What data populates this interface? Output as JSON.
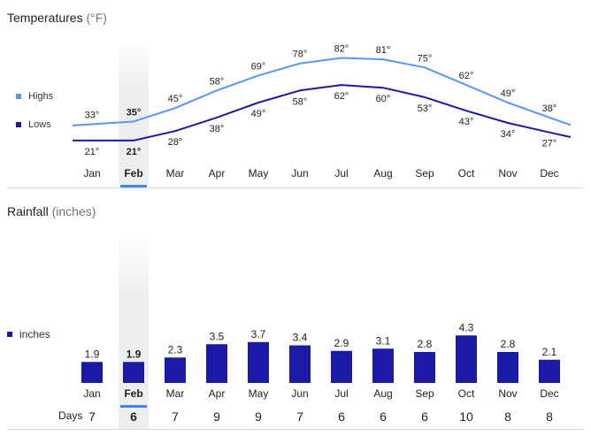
{
  "temperatures": {
    "title": "Temperatures",
    "unit": "(°F)",
    "legend": {
      "highs": "Highs",
      "lows": "Lows"
    }
  },
  "rainfall": {
    "title": "Rainfall",
    "unit": "(inches)",
    "legend": "inches",
    "days_label": "Days"
  },
  "selected_month": "Feb",
  "colors": {
    "highs": "#5a95f5",
    "lows": "#1a1aa6",
    "bars": "#1a1aa6",
    "accent": "#4285f4"
  },
  "chart_data": [
    {
      "type": "line",
      "title": "Temperatures",
      "ylabel": "(°F)",
      "categories": [
        "Jan",
        "Feb",
        "Mar",
        "Apr",
        "May",
        "Jun",
        "Jul",
        "Aug",
        "Sep",
        "Oct",
        "Nov",
        "Dec"
      ],
      "series": [
        {
          "name": "Highs",
          "values": [
            33,
            35,
            45,
            58,
            69,
            78,
            82,
            81,
            75,
            62,
            49,
            38
          ]
        },
        {
          "name": "Lows",
          "values": [
            21,
            21,
            28,
            38,
            49,
            58,
            62,
            60,
            53,
            43,
            34,
            27
          ]
        }
      ],
      "value_suffix": "°"
    },
    {
      "type": "bar",
      "title": "Rainfall",
      "ylabel": "(inches)",
      "categories": [
        "Jan",
        "Feb",
        "Mar",
        "Apr",
        "May",
        "Jun",
        "Jul",
        "Aug",
        "Sep",
        "Oct",
        "Nov",
        "Dec"
      ],
      "series": [
        {
          "name": "inches",
          "values": [
            1.9,
            1.9,
            2.3,
            3.5,
            3.7,
            3.4,
            2.9,
            3.1,
            2.8,
            4.3,
            2.8,
            2.1
          ]
        }
      ],
      "days": [
        7,
        6,
        7,
        9,
        9,
        7,
        6,
        6,
        6,
        10,
        8,
        8
      ]
    }
  ]
}
